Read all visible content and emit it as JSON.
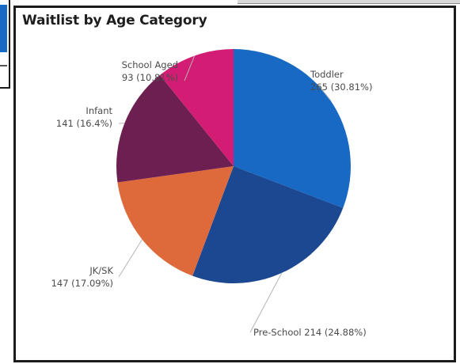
{
  "chart_data": {
    "type": "pie",
    "title": "Waitlist by Age Category",
    "slices": [
      {
        "name": "Toddler",
        "value": 265,
        "percent_label": "30.81%",
        "color": "#1769c4"
      },
      {
        "name": "Pre-School",
        "value": 214,
        "percent_label": "24.88%",
        "color": "#1b4890"
      },
      {
        "name": "JK/SK",
        "value": 147,
        "percent_label": "17.09%",
        "color": "#de6a3c"
      },
      {
        "name": "Infant",
        "value": 141,
        "percent_label": "16.4%",
        "color": "#6e1f52"
      },
      {
        "name": "School Aged",
        "value": 93,
        "percent_label": "10.81%",
        "color": "#d31d74"
      }
    ],
    "start_angle_degrees": 0,
    "direction": "clockwise",
    "labels": "outside with leader lines",
    "legend": "none"
  }
}
